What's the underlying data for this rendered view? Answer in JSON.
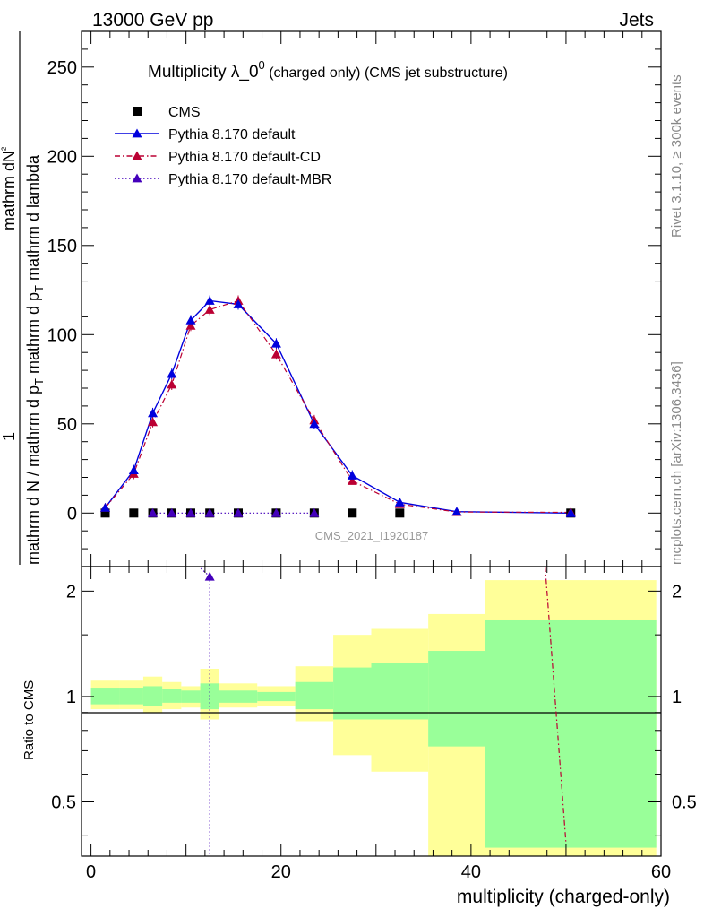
{
  "header": {
    "left": "13000 GeV pp",
    "right": "Jets"
  },
  "side": {
    "rivet": "Rivet 3.1.10, ≥ 300k events",
    "mcplots": "mcplots.cern.ch [arXiv:1306.3436]"
  },
  "main": {
    "title_main": "Multiplicity λ_0",
    "title_sup": "0",
    "title_rest": " (charged only) (CMS jet substructure)",
    "ylabel": {
      "top": "1",
      "num_left": "mathrm dN",
      "num_right": "²",
      "den_a": "mathrm d N / mathrm d p",
      "den_b": "T",
      "den_c": " mathrm d p",
      "den_d": "T",
      "den_e": " mathrm d lambda"
    },
    "watermark": "CMS_2021_I1920187",
    "yticks": [
      "0",
      "50",
      "100",
      "150",
      "200",
      "250"
    ]
  },
  "ratio": {
    "ylabel": "Ratio to CMS",
    "yticks": [
      "0.5",
      "1",
      "2"
    ],
    "xticks": [
      "0",
      "20",
      "40",
      "60"
    ],
    "xlabel": "multiplicity (charged-only)"
  },
  "legend": [
    {
      "label": "CMS",
      "color": "#000000",
      "marker": "square",
      "line": "none"
    },
    {
      "label": "Pythia 8.170 default",
      "color": "#0000dd",
      "marker": "triangle",
      "line": "solid"
    },
    {
      "label": "Pythia 8.170 default-CD",
      "color": "#bb0033",
      "marker": "triangle",
      "line": "dashdot"
    },
    {
      "label": "Pythia 8.170 default-MBR",
      "color": "#4400bb",
      "marker": "triangle",
      "line": "dotted"
    }
  ],
  "chart_data": {
    "type": "line",
    "title": "Multiplicity λ_0^0 (charged only) (CMS jet substructure)",
    "xlabel": "multiplicity (charged-only)",
    "ylabel": "1/N dN/dp_T dλ",
    "xlim": [
      -1,
      60
    ],
    "ylim": [
      -30,
      270
    ],
    "ratio_ylim": [
      0.35,
      2.35
    ],
    "ratio_ylabel": "Ratio to CMS",
    "x": [
      1.5,
      4.5,
      6.5,
      8.5,
      10.5,
      12.5,
      15.5,
      19.5,
      23.5,
      27.5,
      32.5,
      38.5,
      50.5
    ],
    "bin_edges": [
      0,
      3,
      5.5,
      7.5,
      9.5,
      11.5,
      13.5,
      17.5,
      21.5,
      25.5,
      29.5,
      35.5,
      41.5,
      59.5
    ],
    "series": [
      {
        "name": "CMS",
        "values": [
          0,
          0,
          0,
          0,
          0,
          0,
          0,
          0,
          0,
          0,
          0,
          0,
          0
        ]
      },
      {
        "name": "Pythia 8.170 default",
        "values": [
          3,
          24,
          56,
          78,
          108,
          119,
          117,
          95,
          50,
          21,
          6,
          0.8,
          0
        ]
      },
      {
        "name": "Pythia 8.170 default-CD",
        "values": [
          3,
          22,
          51,
          72,
          105,
          114,
          119,
          89,
          52,
          18,
          5,
          0.6,
          0.4
        ]
      },
      {
        "name": "Pythia 8.170 default-MBR",
        "values": [
          0,
          0,
          0,
          0,
          0,
          0,
          0,
          0,
          0,
          0,
          0,
          0,
          0
        ]
      }
    ],
    "mbr_points_x": [
      6.5,
      8.5,
      10.5,
      12.5,
      15.5,
      19.5,
      23.5
    ],
    "ratio_band_inner": [
      [
        0.95,
        1.06
      ],
      [
        0.95,
        1.06
      ],
      [
        0.94,
        1.07
      ],
      [
        0.96,
        1.05
      ],
      [
        0.96,
        1.04
      ],
      [
        0.92,
        1.09
      ],
      [
        0.96,
        1.04
      ],
      [
        0.97,
        1.03
      ],
      [
        0.92,
        1.1
      ],
      [
        0.86,
        1.21
      ],
      [
        0.86,
        1.25
      ],
      [
        0.72,
        1.35
      ],
      [
        0.37,
        1.65
      ]
    ],
    "ratio_band_outer": [
      [
        0.92,
        1.11
      ],
      [
        0.92,
        1.11
      ],
      [
        0.9,
        1.14
      ],
      [
        0.92,
        1.1
      ],
      [
        0.93,
        1.07
      ],
      [
        0.86,
        1.2
      ],
      [
        0.93,
        1.09
      ],
      [
        0.94,
        1.07
      ],
      [
        0.85,
        1.22
      ],
      [
        0.68,
        1.5
      ],
      [
        0.61,
        1.56
      ],
      [
        0.35,
        1.72
      ],
      [
        0.35,
        2.15
      ]
    ],
    "ratio_cd_line": [
      [
        47.8,
        2.4
      ],
      [
        50.0,
        0.38
      ]
    ],
    "ratio_mbr_point": [
      12.5,
      2.2
    ]
  }
}
